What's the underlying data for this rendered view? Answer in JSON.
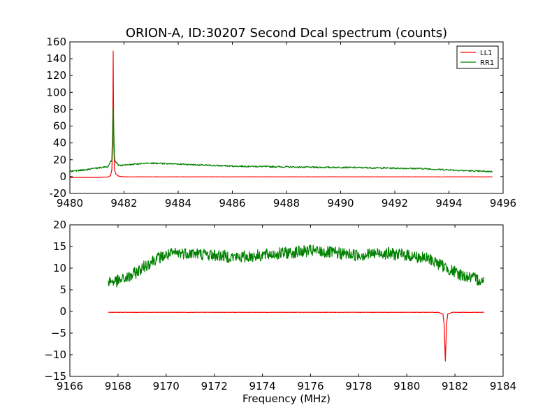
{
  "figure": {
    "title": "ORION-A, ID:30207 Second Dcal spectrum (counts)"
  },
  "colors": {
    "LL1": "#ff0000",
    "RR1": "#008000"
  },
  "chart_data": [
    {
      "type": "line",
      "title": "ORION-A, ID:30207 Second Dcal spectrum (counts)",
      "xlabel": "",
      "ylabel": "",
      "xlim": [
        9480,
        9496
      ],
      "ylim": [
        -20,
        160
      ],
      "xticks": [
        "9480",
        "9482",
        "9484",
        "9486",
        "9488",
        "9490",
        "9492",
        "9494",
        "9496"
      ],
      "yticks": [
        "-20",
        "0",
        "20",
        "40",
        "60",
        "80",
        "100",
        "120",
        "140",
        "160"
      ],
      "grid": false,
      "legend": "top-right",
      "series": [
        {
          "name": "LL1",
          "color": "#ff0000",
          "x": [
            9480.0,
            9481.0,
            9481.4,
            9481.5,
            9481.55,
            9481.58,
            9481.6,
            9481.62,
            9481.65,
            9481.7,
            9481.8,
            9482.0,
            9484.0,
            9486.0,
            9488.0,
            9490.0,
            9492.0,
            9494.0,
            9495.6
          ],
          "y": [
            -1,
            -1,
            -0.5,
            1,
            8,
            40,
            149,
            40,
            8,
            3,
            0.5,
            -0.3,
            -0.3,
            -0.3,
            -0.3,
            -0.3,
            -0.3,
            -0.3,
            -0.3
          ]
        },
        {
          "name": "RR1",
          "color": "#008000",
          "x": [
            9480.0,
            9480.5,
            9481.0,
            9481.4,
            9481.55,
            9481.6,
            9481.65,
            9481.8,
            9482.5,
            9483.0,
            9483.5,
            9484.0,
            9485.0,
            9486.0,
            9487.0,
            9488.0,
            9489.0,
            9490.0,
            9491.0,
            9492.0,
            9493.0,
            9494.0,
            9495.0,
            9495.6
          ],
          "y": [
            6,
            8,
            10,
            12,
            20,
            82,
            20,
            13,
            15,
            16,
            15.5,
            15,
            13.5,
            12.5,
            12,
            11.5,
            11,
            11,
            10.5,
            10,
            9.5,
            8,
            6.5,
            6
          ]
        }
      ]
    },
    {
      "type": "line",
      "title": "",
      "xlabel": "Frequency (MHz)",
      "ylabel": "",
      "xlim": [
        9166,
        9184
      ],
      "ylim": [
        -15,
        20
      ],
      "xticks": [
        "9166",
        "9168",
        "9170",
        "9172",
        "9174",
        "9176",
        "9178",
        "9180",
        "9182",
        "9184"
      ],
      "yticks": [
        "−15",
        "−10",
        "−5",
        "0",
        "5",
        "10",
        "15",
        "20"
      ],
      "grid": false,
      "series": [
        {
          "name": "LL1",
          "color": "#ff0000",
          "x": [
            9167.6,
            9170.0,
            9174.0,
            9178.0,
            9181.3,
            9181.5,
            9181.55,
            9181.6,
            9181.65,
            9181.7,
            9181.9,
            9183.2
          ],
          "y": [
            -0.2,
            -0.2,
            -0.2,
            -0.2,
            -0.2,
            -0.6,
            -3,
            -11.5,
            -3,
            -0.6,
            -0.2,
            -0.2
          ]
        },
        {
          "name": "RR1",
          "color": "#008000",
          "x": [
            9167.6,
            9168.0,
            9168.5,
            9169.0,
            9169.5,
            9170.0,
            9170.5,
            9171.0,
            9172.0,
            9173.0,
            9174.0,
            9175.0,
            9176.0,
            9177.0,
            9178.0,
            9179.0,
            9180.0,
            9180.5,
            9181.0,
            9181.5,
            9182.0,
            9182.5,
            9183.2
          ],
          "y": [
            7,
            7,
            8,
            10,
            12,
            13,
            13.5,
            13.5,
            13,
            12.5,
            13,
            13.5,
            14,
            13.5,
            13,
            13.5,
            13,
            12.5,
            12,
            10.5,
            9,
            8,
            7
          ]
        }
      ]
    }
  ]
}
